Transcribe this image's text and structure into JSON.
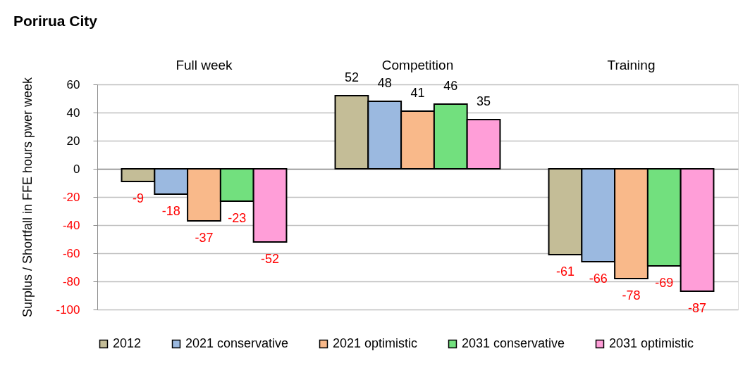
{
  "chart_data": {
    "type": "bar",
    "title": "Porirua City",
    "ylabel": "Surplus / Shortfall in FFE hours pwer week",
    "categories": [
      "Full week",
      "Competition",
      "Training"
    ],
    "series": [
      {
        "name": "2012",
        "color": "#c4bd97",
        "values": [
          -9,
          52,
          -61
        ]
      },
      {
        "name": "2021 conservative",
        "color": "#9bb9e0",
        "values": [
          -18,
          48,
          -66
        ]
      },
      {
        "name": "2021 optimistic",
        "color": "#f9b98a",
        "values": [
          -37,
          41,
          -78
        ]
      },
      {
        "name": "2031 conservative",
        "color": "#72e07e",
        "values": [
          -23,
          46,
          -69
        ]
      },
      {
        "name": "2031 optimistic",
        "color": "#ff9ed8",
        "values": [
          -52,
          35,
          -87
        ]
      }
    ],
    "ylim": [
      -100,
      60
    ],
    "yticks": [
      -100,
      -80,
      -60,
      -40,
      -20,
      0,
      20,
      40,
      60
    ],
    "grid": "y",
    "legend": "bottom",
    "data_labels": true
  }
}
